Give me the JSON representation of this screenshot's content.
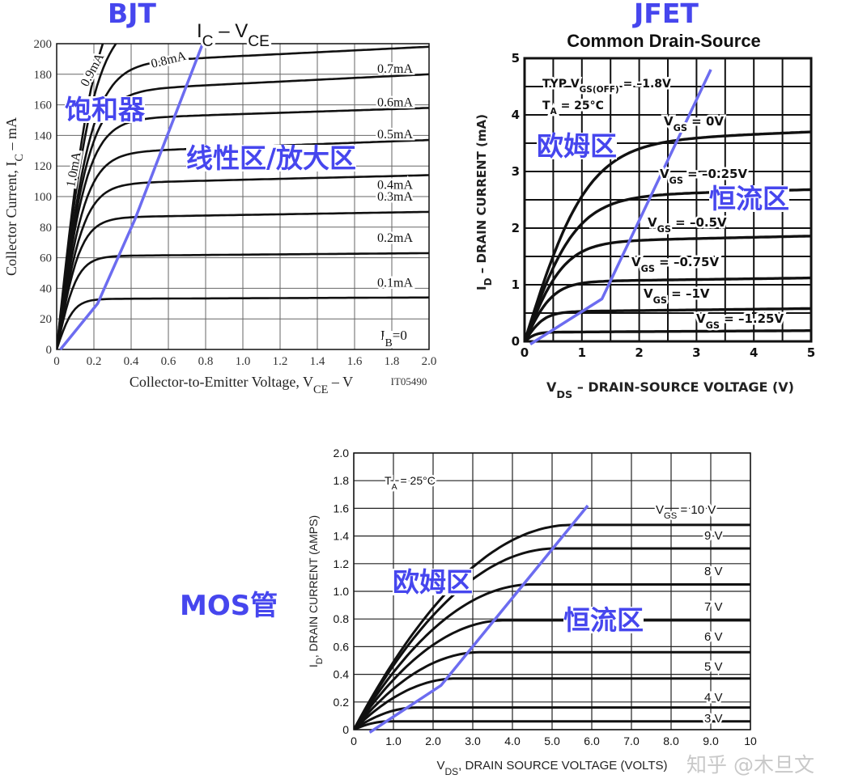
{
  "annotations": {
    "bjt_title": "BJT",
    "bjt_saturation": "饱和器",
    "bjt_linear": "线性区/放大区",
    "jfet_title": "JFET",
    "jfet_ohmic": "欧姆区",
    "jfet_constant": "恒流区",
    "mos_title": "MOS管",
    "mos_ohmic": "欧姆区",
    "mos_constant": "恒流区",
    "watermark": "知乎 @木旦文",
    "accent_color": "#4646ee"
  },
  "chart_data": [
    {
      "id": "bjt",
      "type": "line",
      "title": "I_{C} – V_{CE}",
      "xlabel": "Collector-to-Emitter Voltage, V_{CE} – V",
      "ylabel": "Collector Current, I_{C} – mA",
      "code": "IT05490",
      "xlim": [
        0,
        2.0
      ],
      "ylim": [
        0,
        200
      ],
      "xticks": [
        "0",
        "0.2",
        "0.4",
        "0.6",
        "0.8",
        "1.0",
        "1.2",
        "1.4",
        "1.6",
        "1.8",
        "2.0"
      ],
      "yticks": [
        "0",
        "20",
        "40",
        "60",
        "80",
        "100",
        "120",
        "140",
        "160",
        "180",
        "200"
      ],
      "grid": true,
      "extra_label": "I_{B}=0",
      "series": [
        {
          "name": "0.1mA",
          "sat": 33,
          "knee_v": 0.09,
          "end": 34
        },
        {
          "name": "0.2mA",
          "sat": 61,
          "knee_v": 0.11,
          "end": 63
        },
        {
          "name": "0.3mA",
          "sat": 86,
          "knee_v": 0.13,
          "end": 90
        },
        {
          "name": "0.4mA",
          "sat": 108,
          "knee_v": 0.15,
          "end": 114
        },
        {
          "name": "0.5mA",
          "sat": 128,
          "knee_v": 0.16,
          "end": 137
        },
        {
          "name": "0.6mA",
          "sat": 150,
          "knee_v": 0.17,
          "end": 158
        },
        {
          "name": "0.7mA",
          "sat": 168,
          "knee_v": 0.18,
          "end": 180
        },
        {
          "name": "0.8mA",
          "sat": 186,
          "knee_v": 0.19,
          "end": 198
        },
        {
          "name": "0.9mA",
          "sat": 215,
          "knee_v": 0.2,
          "end": 228
        },
        {
          "name": "1.0mA",
          "sat": 240,
          "knee_v": 0.21,
          "end": 252
        }
      ],
      "region_boundary": [
        [
          0.02,
          0
        ],
        [
          0.22,
          30
        ],
        [
          0.42,
          85
        ],
        [
          0.8,
          205
        ]
      ]
    },
    {
      "id": "jfet",
      "type": "line",
      "title": "Common Drain-Source",
      "xlabel": "V_{DS} – DRAIN-SOURCE VOLTAGE (V)",
      "ylabel": "I_{D} – DRAIN CURRENT (mA)",
      "xlim": [
        0,
        5
      ],
      "ylim": [
        0,
        5
      ],
      "xticks": [
        "0",
        "1",
        "2",
        "3",
        "4",
        "5"
      ],
      "yticks": [
        "0",
        "1",
        "2",
        "3",
        "4",
        "5"
      ],
      "grid": true,
      "notes": [
        "TYP V_{GS(OFF)} = –1.8V",
        "T_{A} = 25°C"
      ],
      "series": [
        {
          "name": "V_{GS} = 0V",
          "sat": 3.5,
          "knee_v": 1.1,
          "end": 3.7
        },
        {
          "name": "V_{GS} = –0.25V",
          "sat": 2.55,
          "knee_v": 0.9,
          "end": 2.68
        },
        {
          "name": "V_{GS} = –0.5V",
          "sat": 1.75,
          "knee_v": 0.7,
          "end": 1.86
        },
        {
          "name": "V_{GS} = –0.75V",
          "sat": 1.05,
          "knee_v": 0.5,
          "end": 1.12
        },
        {
          "name": "V_{GS} = –1V",
          "sat": 0.52,
          "knee_v": 0.35,
          "end": 0.58
        },
        {
          "name": "V_{GS} = –1.25V",
          "sat": 0.16,
          "knee_v": 0.2,
          "end": 0.19
        }
      ],
      "region_boundary": [
        [
          0.1,
          -0.05
        ],
        [
          1.35,
          0.75
        ],
        [
          3.25,
          4.8
        ]
      ]
    },
    {
      "id": "mos",
      "type": "line",
      "title": "",
      "xlabel": "V_{DS}, DRAIN SOURCE VOLTAGE (VOLTS)",
      "ylabel": "I_{D}, DRAIN CURRENT (AMPS)",
      "xlim": [
        0,
        10
      ],
      "ylim": [
        0,
        2.0
      ],
      "xticks": [
        "0",
        "1.0",
        "2.0",
        "3.0",
        "4.0",
        "5.0",
        "6.0",
        "7.0",
        "8.0",
        "9.0",
        "10"
      ],
      "yticks": [
        "0",
        "0.2",
        "0.4",
        "0.6",
        "0.8",
        "1.0",
        "1.2",
        "1.4",
        "1.6",
        "1.8",
        "2.0"
      ],
      "grid": true,
      "notes": [
        "T_{A} = 25°C"
      ],
      "series": [
        {
          "name": "3 V",
          "sat": 0.06,
          "knee_v": 0.9,
          "end": 0.06
        },
        {
          "name": "4 V",
          "sat": 0.16,
          "knee_v": 1.6,
          "end": 0.16
        },
        {
          "name": "5 V",
          "sat": 0.37,
          "knee_v": 2.6,
          "end": 0.37
        },
        {
          "name": "6 V",
          "sat": 0.56,
          "knee_v": 3.2,
          "end": 0.56
        },
        {
          "name": "7 V",
          "sat": 0.79,
          "knee_v": 3.8,
          "end": 0.79
        },
        {
          "name": "8 V",
          "sat": 1.05,
          "knee_v": 4.5,
          "end": 1.05
        },
        {
          "name": "9 V",
          "sat": 1.31,
          "knee_v": 5.1,
          "end": 1.31
        },
        {
          "name": "V_{GS} = 10 V",
          "sat": 1.48,
          "knee_v": 5.5,
          "end": 1.48
        }
      ],
      "region_boundary": [
        [
          0.4,
          -0.02
        ],
        [
          2.2,
          0.32
        ],
        [
          5.9,
          1.62
        ]
      ]
    }
  ]
}
